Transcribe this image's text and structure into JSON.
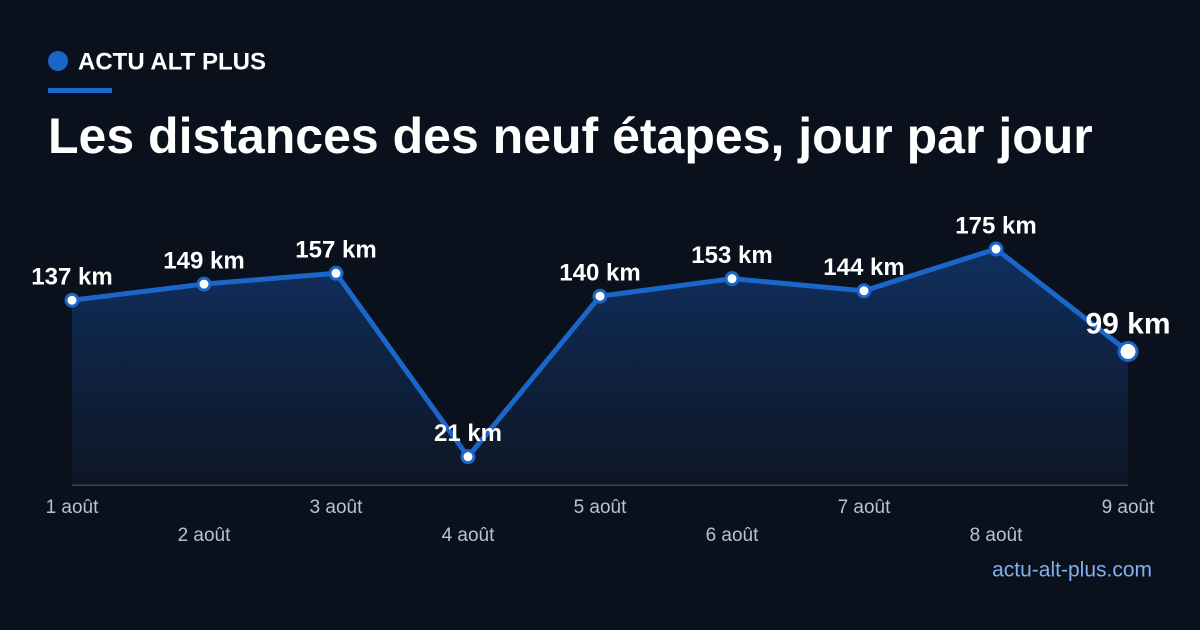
{
  "brand": "ACTU ALT PLUS",
  "footer": "actu-alt-plus.com",
  "chart_data": {
    "type": "line",
    "title": "Les distances des neuf étapes, jour par jour",
    "categories": [
      "1 août",
      "2 août",
      "3 août",
      "4 août",
      "5 août",
      "6 août",
      "7 août",
      "8 août",
      "9 août"
    ],
    "values": [
      137,
      149,
      157,
      21,
      140,
      153,
      144,
      175,
      99
    ],
    "value_labels": [
      "137 km",
      "149 km",
      "157 km",
      "21 km",
      "140 km",
      "153 km",
      "144 km",
      "175 km",
      "99 km"
    ],
    "color": "#1a66c9"
  }
}
